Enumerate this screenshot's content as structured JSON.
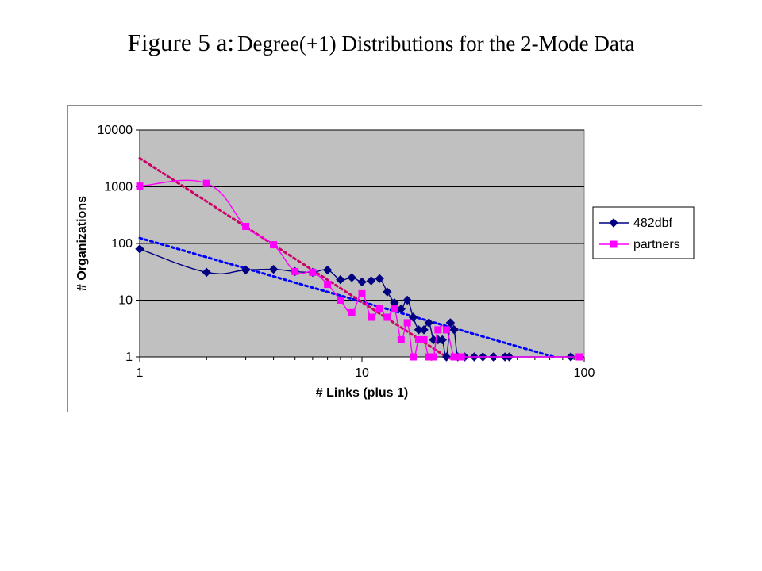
{
  "title": {
    "label": "Figure  5 a:",
    "subtitle": "Degree(+1) Distributions for the 2-Mode Data"
  },
  "colors": {
    "plot_bg": "#c0c0c0",
    "gridline": "#000000",
    "series1": "#000080",
    "series2": "#ff00ff",
    "trend1": "#0000ff",
    "trend2": "#cc0066"
  },
  "chart_data": {
    "type": "line",
    "xlabel": "# Links (plus 1)",
    "ylabel": "# Organizations",
    "xscale": "log",
    "yscale": "log",
    "xlim": [
      1,
      100
    ],
    "ylim": [
      1,
      10000
    ],
    "xticks": [
      "1",
      "10",
      "100"
    ],
    "yticks": [
      "1",
      "10",
      "100",
      "1000",
      "10000"
    ],
    "grid": "horizontal",
    "legend": "right",
    "series": [
      {
        "name": "482dbf",
        "marker": "diamond",
        "points": [
          [
            1,
            80
          ],
          [
            2,
            31
          ],
          [
            3,
            34
          ],
          [
            4,
            35
          ],
          [
            5,
            32
          ],
          [
            6,
            31
          ],
          [
            7,
            34
          ],
          [
            8,
            23
          ],
          [
            9,
            25
          ],
          [
            10,
            21
          ],
          [
            11,
            22
          ],
          [
            12,
            24
          ],
          [
            13,
            14
          ],
          [
            14,
            9
          ],
          [
            15,
            7
          ],
          [
            16,
            10
          ],
          [
            17,
            5
          ],
          [
            18,
            3
          ],
          [
            19,
            3
          ],
          [
            20,
            4
          ],
          [
            21,
            2
          ],
          [
            22,
            2
          ],
          [
            23,
            2
          ],
          [
            24,
            1
          ],
          [
            25,
            4
          ],
          [
            26,
            3
          ],
          [
            27,
            1
          ],
          [
            29,
            1
          ],
          [
            32,
            1
          ],
          [
            35,
            1
          ],
          [
            39,
            1
          ],
          [
            44,
            1
          ],
          [
            46,
            1
          ],
          [
            87,
            1
          ]
        ]
      },
      {
        "name": "partners",
        "marker": "square",
        "points": [
          [
            1,
            1030
          ],
          [
            2,
            1150
          ],
          [
            3,
            200
          ],
          [
            4,
            95
          ],
          [
            5,
            32
          ],
          [
            6,
            31
          ],
          [
            7,
            19
          ],
          [
            8,
            10
          ],
          [
            9,
            6
          ],
          [
            10,
            13
          ],
          [
            11,
            5
          ],
          [
            12,
            7
          ],
          [
            13,
            5
          ],
          [
            14,
            7
          ],
          [
            15,
            2
          ],
          [
            16,
            4
          ],
          [
            17,
            1
          ],
          [
            18,
            2
          ],
          [
            19,
            2
          ],
          [
            20,
            1
          ],
          [
            21,
            1
          ],
          [
            22,
            3
          ],
          [
            24,
            3
          ],
          [
            26,
            1
          ],
          [
            28,
            1
          ],
          [
            95,
            1
          ]
        ]
      }
    ],
    "trendlines": [
      {
        "series": "482dbf",
        "style": "dotted",
        "from": [
          1,
          125
        ],
        "to": [
          73,
          1
        ]
      },
      {
        "series": "partners",
        "style": "dotted",
        "from": [
          1,
          3200
        ],
        "to": [
          24,
          1
        ]
      }
    ]
  }
}
